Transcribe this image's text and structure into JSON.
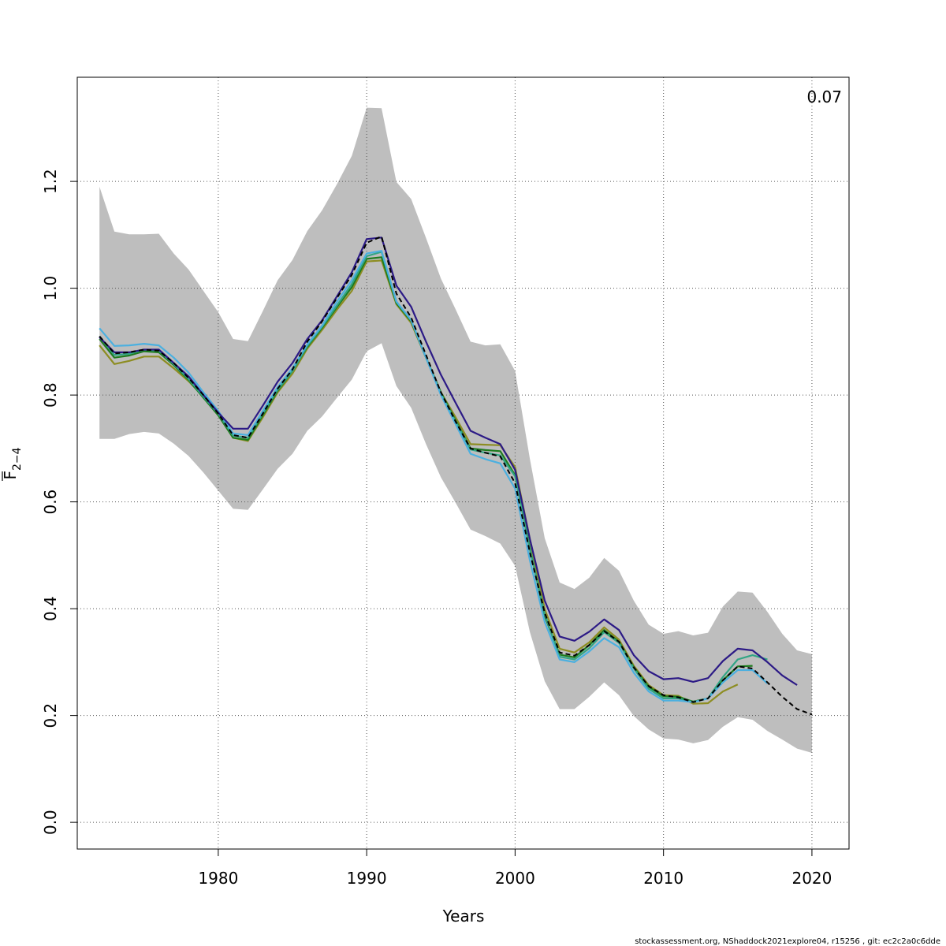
{
  "chart_data": {
    "type": "line",
    "xlabel": "Years",
    "ylabel_base": "F",
    "ylabel_subscript": "2−4",
    "corner_value": "0.07",
    "footer": "stockassessment.org, NShaddock2021explore04, r15256 , git: ec2c2a0c6dde",
    "xlim": [
      1970.5,
      2022.5
    ],
    "ylim": [
      -0.05,
      1.395
    ],
    "x_ticks": [
      1980,
      1990,
      2000,
      2010,
      2020
    ],
    "y_ticks": [
      0.0,
      0.2,
      0.4,
      0.6,
      0.8,
      1.0,
      1.2
    ],
    "y_tick_labels": [
      "0.0",
      "0.2",
      "0.4",
      "0.6",
      "0.8",
      "1.0",
      "1.2"
    ],
    "grid": true,
    "colors": {
      "band": "#bebebe",
      "grid": "#555555",
      "base": "#000000",
      "s2019": "#2c1a86",
      "s2018": "#2c1a86",
      "s2017": "#4bb0e0",
      "s2016": "#31a585",
      "s2015": "#1e7b1e",
      "s2014": "#8d8d22",
      "s2013": "#a6dceb"
    },
    "years": [
      1972,
      1973,
      1974,
      1975,
      1976,
      1977,
      1978,
      1979,
      1980,
      1981,
      1982,
      1983,
      1984,
      1985,
      1986,
      1987,
      1988,
      1989,
      1990,
      1991,
      1992,
      1993,
      1994,
      1995,
      1996,
      1997,
      1998,
      1999,
      2000,
      2001,
      2002,
      2003,
      2004,
      2005,
      2006,
      2007,
      2008,
      2009,
      2010,
      2011,
      2012,
      2013,
      2014,
      2015,
      2016,
      2017,
      2018,
      2019,
      2020
    ],
    "ci_upper": [
      1.19,
      1.106,
      1.101,
      1.101,
      1.102,
      1.065,
      1.035,
      0.995,
      0.955,
      0.905,
      0.901,
      0.957,
      1.015,
      1.053,
      1.107,
      1.146,
      1.195,
      1.248,
      1.338,
      1.337,
      1.199,
      1.167,
      1.094,
      1.018,
      0.96,
      0.9,
      0.893,
      0.895,
      0.845,
      0.68,
      0.532,
      0.449,
      0.437,
      0.458,
      0.495,
      0.471,
      0.415,
      0.37,
      0.353,
      0.358,
      0.35,
      0.355,
      0.404,
      0.432,
      0.43,
      0.394,
      0.353,
      0.322,
      0.315
    ],
    "ci_lower": [
      0.718,
      0.718,
      0.727,
      0.731,
      0.728,
      0.709,
      0.686,
      0.655,
      0.621,
      0.587,
      0.585,
      0.623,
      0.662,
      0.69,
      0.733,
      0.76,
      0.795,
      0.829,
      0.882,
      0.897,
      0.817,
      0.776,
      0.708,
      0.646,
      0.598,
      0.548,
      0.536,
      0.522,
      0.48,
      0.356,
      0.264,
      0.212,
      0.212,
      0.235,
      0.262,
      0.238,
      0.199,
      0.174,
      0.157,
      0.155,
      0.148,
      0.154,
      0.179,
      0.197,
      0.192,
      0.171,
      0.155,
      0.138,
      0.13
    ],
    "series": [
      {
        "key": "base",
        "dashed": true,
        "values": [
          0.91,
          0.878,
          0.88,
          0.885,
          0.883,
          0.86,
          0.832,
          0.8,
          0.765,
          0.725,
          0.72,
          0.765,
          0.812,
          0.848,
          0.9,
          0.938,
          0.982,
          1.025,
          1.085,
          1.097,
          0.99,
          0.945,
          0.875,
          0.805,
          0.75,
          0.7,
          0.692,
          0.685,
          0.635,
          0.505,
          0.392,
          0.318,
          0.312,
          0.332,
          0.358,
          0.338,
          0.29,
          0.255,
          0.238,
          0.234,
          0.225,
          0.232,
          0.266,
          0.292,
          0.288,
          0.262,
          0.235,
          0.212,
          0.202
        ]
      },
      {
        "key": "s2019",
        "dashed": false,
        "values": [
          0.908,
          0.88,
          0.88,
          0.885,
          0.885,
          0.86,
          0.835,
          0.8,
          0.767,
          0.737,
          0.737,
          0.78,
          0.825,
          0.86,
          0.905,
          0.94,
          0.985,
          1.03,
          1.092,
          1.095,
          1.005,
          0.965,
          0.9,
          0.838,
          0.785,
          0.733,
          0.72,
          0.708,
          0.66,
          0.53,
          0.415,
          0.348,
          0.34,
          0.357,
          0.38,
          0.36,
          0.313,
          0.283,
          0.268,
          0.27,
          0.263,
          0.27,
          0.302,
          0.325,
          0.322,
          0.3,
          0.275,
          0.257
        ]
      },
      {
        "key": "s2017",
        "dashed": false,
        "values": [
          0.925,
          0.892,
          0.893,
          0.896,
          0.893,
          0.87,
          0.842,
          0.805,
          0.77,
          0.728,
          0.725,
          0.77,
          0.815,
          0.85,
          0.895,
          0.93,
          0.975,
          1.015,
          1.065,
          1.07,
          0.975,
          0.94,
          0.87,
          0.8,
          0.745,
          0.69,
          0.68,
          0.672,
          0.625,
          0.49,
          0.375,
          0.305,
          0.3,
          0.32,
          0.345,
          0.328,
          0.28,
          0.245,
          0.228,
          0.228,
          0.225,
          0.232,
          0.262,
          0.285,
          0.285,
          0.26
        ]
      },
      {
        "key": "s2016",
        "dashed": false,
        "values": [
          0.91,
          0.875,
          0.877,
          0.885,
          0.883,
          0.858,
          0.83,
          0.797,
          0.765,
          0.724,
          0.72,
          0.765,
          0.81,
          0.845,
          0.892,
          0.928,
          0.968,
          1.008,
          1.06,
          1.068,
          0.975,
          0.94,
          0.87,
          0.802,
          0.75,
          0.698,
          0.692,
          0.687,
          0.648,
          0.51,
          0.39,
          0.31,
          0.305,
          0.326,
          0.356,
          0.336,
          0.288,
          0.25,
          0.232,
          0.232,
          0.225,
          0.232,
          0.272,
          0.305,
          0.313,
          0.305
        ]
      },
      {
        "key": "s2015",
        "dashed": false,
        "values": [
          0.905,
          0.87,
          0.874,
          0.882,
          0.88,
          0.856,
          0.828,
          0.795,
          0.762,
          0.72,
          0.716,
          0.762,
          0.808,
          0.845,
          0.89,
          0.926,
          0.965,
          1.002,
          1.055,
          1.058,
          0.972,
          0.938,
          0.87,
          0.805,
          0.752,
          0.7,
          0.697,
          0.695,
          0.65,
          0.513,
          0.386,
          0.314,
          0.309,
          0.332,
          0.36,
          0.338,
          0.29,
          0.254,
          0.236,
          0.235,
          0.226,
          0.232,
          0.266,
          0.292,
          0.293
        ]
      },
      {
        "key": "s2014",
        "dashed": false,
        "values": [
          0.893,
          0.858,
          0.864,
          0.872,
          0.872,
          0.85,
          0.826,
          0.797,
          0.763,
          0.72,
          0.714,
          0.758,
          0.805,
          0.84,
          0.887,
          0.922,
          0.96,
          0.995,
          1.05,
          1.052,
          0.97,
          0.935,
          0.87,
          0.805,
          0.758,
          0.708,
          0.707,
          0.706,
          0.665,
          0.53,
          0.399,
          0.325,
          0.318,
          0.337,
          0.365,
          0.342,
          0.293,
          0.257,
          0.238,
          0.237,
          0.222,
          0.223,
          0.245,
          0.258
        ]
      }
    ]
  }
}
